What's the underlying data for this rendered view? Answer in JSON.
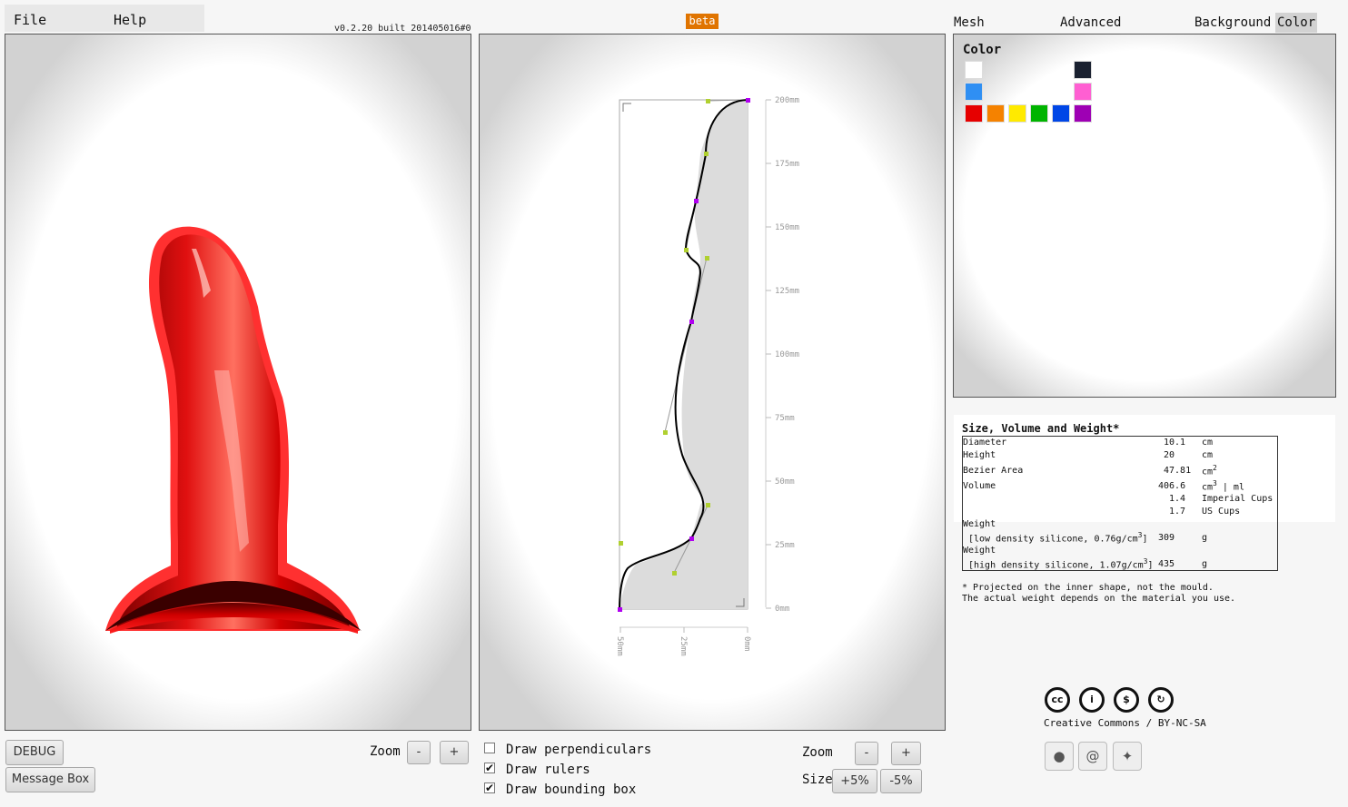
{
  "menu": {
    "file": "File",
    "help": "Help"
  },
  "version": "v0.2.20 built 201405016#0",
  "beta": "beta",
  "tabs": [
    "Mesh Settings",
    "Advanced Settings",
    "Background",
    "Color"
  ],
  "active_tab": "Color",
  "color_panel": {
    "title": "Color",
    "swatches": [
      "#ffffff",
      "#1a2130",
      "#2f8ff3",
      "#ff5fd2",
      "#e60000",
      "#f58200",
      "#ffea00",
      "#00b400",
      "#0046e6",
      "#9e00b4"
    ],
    "selected_model_color": "#d40000"
  },
  "ruler": {
    "vertical": [
      "200mm",
      "175mm",
      "150mm",
      "125mm",
      "100mm",
      "75mm",
      "50mm",
      "25mm",
      "0mm"
    ],
    "horizontal": [
      "50mm",
      "25mm",
      "0mm"
    ]
  },
  "info": {
    "title": "Size, Volume and Weight*",
    "diameter": {
      "label": "Diameter",
      "value": "10.1",
      "unit": "cm"
    },
    "height": {
      "label": "Height",
      "value": "20",
      "unit": "cm"
    },
    "area": {
      "label": "Bezier Area",
      "value": "47.81",
      "unit": "cm",
      "sup": "2"
    },
    "volume": {
      "label": "Volume",
      "value": "406.6",
      "unit_a": "cm",
      "sup": "3",
      "unit_b": " | ml"
    },
    "imperial": {
      "value": "1.4",
      "unit": "Imperial Cups"
    },
    "us": {
      "value": "1.7",
      "unit": "US Cups"
    },
    "weight_label": "Weight",
    "low": {
      "label": "[low density silicone, 0.76g/cm",
      "sup": "3",
      "close": "]",
      "value": "309",
      "unit": "g"
    },
    "high": {
      "label": "[high density silicone, 1.07g/cm",
      "sup": "3",
      "close": "]",
      "value": "435",
      "unit": "g"
    },
    "note1": "* Projected on the inner shape, not the mould.",
    "note2": "The actual weight depends on the material you use."
  },
  "left_controls": {
    "debug": "DEBUG",
    "message_box": "Message Box",
    "zoom": "Zoom",
    "minus": "-",
    "plus": "+"
  },
  "middle_controls": {
    "draw_perpendiculars": "Draw perpendiculars",
    "draw_rulers": "Draw rulers",
    "draw_bounding_box": "Draw bounding box",
    "perpendiculars_checked": false,
    "rulers_checked": true,
    "bounding_box_checked": true,
    "zoom": "Zoom",
    "minus": "-",
    "plus": "+",
    "size": "Size",
    "size_up": "+5%",
    "size_down": "-5%"
  },
  "license": {
    "text": "Creative Commons / BY-NC-SA",
    "icons": [
      "cc",
      "by",
      "nc",
      "sa"
    ]
  },
  "social": [
    "github-icon",
    "email-icon",
    "twitter-icon"
  ]
}
